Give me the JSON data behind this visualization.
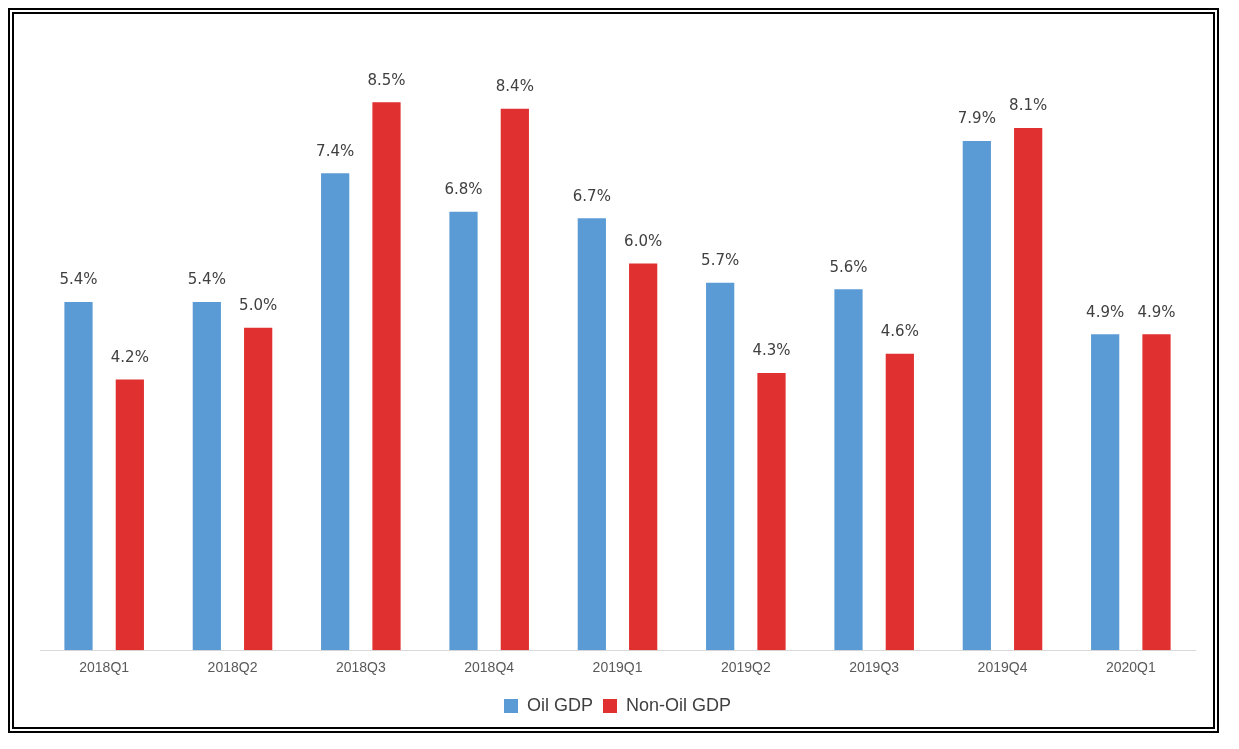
{
  "chart_data": {
    "type": "bar",
    "categories": [
      "2018Q1",
      "2018Q2",
      "2018Q3",
      "2018Q4",
      "2019Q1",
      "2019Q2",
      "2019Q3",
      "2019Q4",
      "2020Q1"
    ],
    "series": [
      {
        "name": "Oil GDP",
        "color": "#5b9bd5",
        "values": [
          5.4,
          5.4,
          7.4,
          6.8,
          6.7,
          5.7,
          5.6,
          7.9,
          4.9
        ],
        "value_labels": [
          "5.4%",
          "5.4%",
          "7.4%",
          "6.8%",
          "6.7%",
          "5.7%",
          "5.6%",
          "7.9%",
          "4.9%"
        ]
      },
      {
        "name": "Non-Oil GDP",
        "color": "#e03030",
        "values": [
          4.2,
          5.0,
          8.5,
          8.4,
          6.0,
          4.3,
          4.6,
          8.1,
          4.9
        ],
        "value_labels": [
          "4.2%",
          "5.0%",
          "8.5%",
          "8.4%",
          "6.0%",
          "4.3%",
          "4.6%",
          "8.1%",
          "4.9%"
        ]
      }
    ],
    "legend": "bottom"
  }
}
